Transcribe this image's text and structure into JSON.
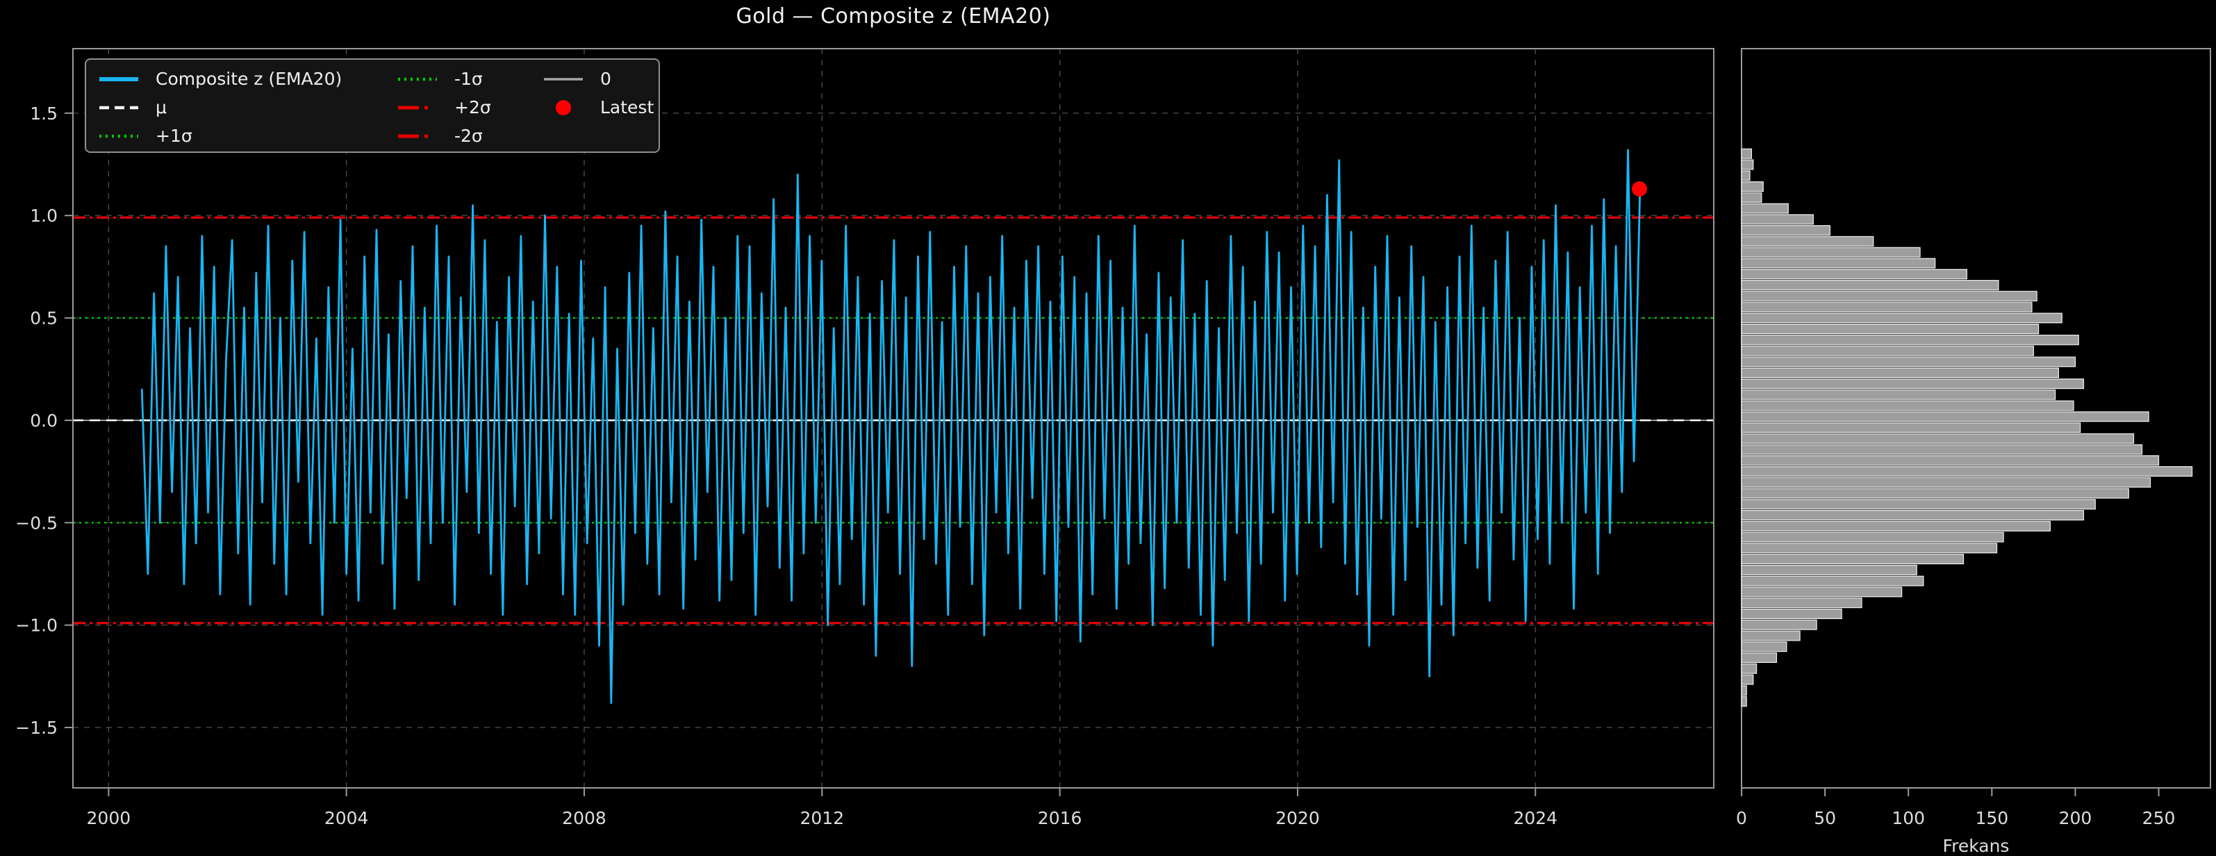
{
  "title": "Gold — Composite z (EMA20)",
  "colors": {
    "background": "#000000",
    "series_line": "#1ab5f2",
    "mu_line": "#f5f5f5",
    "sigma1_line": "#00cc00",
    "sigma2_line": "#e60000",
    "zero_line": "#a6a6a6",
    "latest_dot": "#ff0000",
    "hist_bar_fill": "#9e9e9e",
    "hist_bar_edge": "#f0f0f0",
    "grid": "#4a4a4a",
    "spine": "#9a9a9a",
    "tick_text": "#dedede"
  },
  "legend": {
    "items": [
      {
        "label": "Composite z (EMA20)",
        "style": "series"
      },
      {
        "label": "μ",
        "style": "mu"
      },
      {
        "label": "+1σ",
        "style": "sigma1"
      },
      {
        "label": "-1σ",
        "style": "sigma1"
      },
      {
        "label": "+2σ",
        "style": "sigma2"
      },
      {
        "label": "-2σ",
        "style": "sigma2"
      },
      {
        "label": "0",
        "style": "zero"
      },
      {
        "label": "Latest",
        "style": "dot"
      }
    ]
  },
  "chart_data": [
    {
      "type": "line",
      "title": "Gold — Composite z (EMA20)",
      "xlabel": "",
      "ylabel": "",
      "xlim": [
        1999.4,
        2027.0
      ],
      "ylim": [
        -1.795,
        1.815
      ],
      "grid": true,
      "legend_position": "upper left",
      "xticks": [
        2000,
        2004,
        2008,
        2012,
        2016,
        2020,
        2024
      ],
      "xtick_labels": [
        "2000",
        "2004",
        "2008",
        "2012",
        "2016",
        "2020",
        "2024"
      ],
      "yticks": [
        -1.5,
        -1.0,
        -0.5,
        0.0,
        0.5,
        1.0,
        1.5
      ],
      "ytick_labels": [
        "−1.5",
        "−1.0",
        "−0.5",
        "0.0",
        "0.5",
        "1.0",
        "1.5"
      ],
      "reference_lines": {
        "mu": 0.0,
        "plus_1sigma": 0.5,
        "minus_1sigma": -0.5,
        "plus_2sigma": 0.99,
        "minus_2sigma": -0.99,
        "zero": 0.0
      },
      "latest_point": {
        "x": 2025.75,
        "y": 1.13,
        "label": "Latest"
      },
      "series": [
        {
          "name": "Composite z (EMA20)",
          "x_start": 2000.56,
          "x_step": 0.1012,
          "values": [
            0.15,
            -0.75,
            0.62,
            -0.5,
            0.85,
            -0.35,
            0.7,
            -0.8,
            0.45,
            -0.6,
            0.9,
            -0.45,
            0.75,
            -0.85,
            0.3,
            0.88,
            -0.65,
            0.55,
            -0.9,
            0.72,
            -0.4,
            0.95,
            -0.7,
            0.5,
            -0.85,
            0.78,
            -0.3,
            0.92,
            -0.6,
            0.4,
            -0.95,
            0.65,
            -0.5,
            0.98,
            -0.75,
            0.35,
            -0.88,
            0.8,
            -0.45,
            0.93,
            -0.7,
            0.42,
            -0.92,
            0.68,
            -0.38,
            0.85,
            -0.78,
            0.55,
            -0.6,
            0.95,
            -0.5,
            0.8,
            -0.9,
            0.6,
            -0.35,
            1.05,
            -0.55,
            0.88,
            -0.75,
            0.48,
            -0.95,
            0.7,
            -0.42,
            0.9,
            -0.8,
            0.58,
            -0.65,
            1.0,
            -0.48,
            0.75,
            -0.85,
            0.52,
            -0.95,
            0.78,
            -0.6,
            0.4,
            -1.1,
            0.65,
            -1.38,
            0.35,
            -0.9,
            0.72,
            -0.55,
            0.95,
            -0.7,
            0.45,
            -0.85,
            1.02,
            -0.4,
            0.8,
            -0.92,
            0.58,
            -0.68,
            0.98,
            -0.35,
            0.75,
            -0.88,
            0.5,
            -0.78,
            0.9,
            -0.55,
            0.85,
            -0.95,
            0.62,
            -0.42,
            1.08,
            -0.72,
            0.55,
            -0.88,
            1.2,
            -0.65,
            0.9,
            -0.5,
            0.78,
            -1.0,
            0.45,
            -0.8,
            0.95,
            -0.58,
            0.7,
            -0.9,
            0.52,
            -1.15,
            0.68,
            -0.45,
            0.88,
            -0.75,
            0.6,
            -1.2,
            0.8,
            -0.58,
            0.92,
            -0.7,
            0.48,
            -0.95,
            0.75,
            -0.52,
            0.85,
            -0.8,
            0.62,
            -1.05,
            0.7,
            -0.45,
            0.9,
            -0.65,
            0.55,
            -0.92,
            0.78,
            -0.38,
            0.85,
            -0.75,
            0.58,
            -0.98,
            0.8,
            -0.52,
            0.7,
            -1.08,
            0.62,
            -0.85,
            0.9,
            -0.48,
            0.78,
            -0.92,
            0.55,
            -0.7,
            0.95,
            -0.6,
            0.42,
            -1.0,
            0.72,
            -0.82,
            0.6,
            -0.5,
            0.88,
            -0.72,
            0.52,
            -0.95,
            0.68,
            -1.1,
            0.45,
            -0.78,
            0.9,
            -0.55,
            0.75,
            -0.98,
            0.58,
            -0.7,
            0.92,
            -0.45,
            0.82,
            -0.88,
            0.65,
            -0.75,
            0.95,
            -0.5,
            0.85,
            -0.62,
            1.1,
            -0.4,
            1.27,
            -0.7,
            0.92,
            -0.85,
            0.55,
            -1.1,
            0.75,
            -0.48,
            0.9,
            -0.95,
            0.6,
            -0.78,
            0.85,
            -0.52,
            0.7,
            -1.25,
            0.48,
            -0.9,
            0.65,
            -1.05,
            0.8,
            -0.6,
            0.95,
            -0.72,
            0.55,
            -0.88,
            0.78,
            -0.45,
            0.92,
            -0.68,
            0.5,
            -0.98,
            0.75,
            -0.58,
            0.88,
            -0.7,
            1.05,
            -0.5,
            0.82,
            -0.92,
            0.65,
            -0.45,
            0.95,
            -0.75,
            1.08,
            -0.55,
            0.85,
            -0.35,
            1.32,
            -0.2,
            1.13
          ]
        }
      ]
    },
    {
      "type": "bar",
      "orientation": "horizontal",
      "xlabel": "Frekans",
      "xlim": [
        0,
        281
      ],
      "xticks": [
        0,
        50,
        100,
        150,
        200,
        250
      ],
      "xtick_labels": [
        "0",
        "50",
        "100",
        "150",
        "200",
        "250"
      ],
      "grid": false,
      "bin_z_top": 1.302,
      "bin_z_step": -0.0535,
      "frequencies": [
        6,
        7,
        5,
        13,
        12,
        28,
        43,
        53,
        79,
        107,
        116,
        135,
        154,
        177,
        174,
        192,
        178,
        202,
        175,
        200,
        190,
        205,
        188,
        199,
        244,
        203,
        235,
        240,
        250,
        270,
        245,
        232,
        212,
        205,
        185,
        157,
        153,
        133,
        105,
        109,
        96,
        72,
        60,
        45,
        35,
        27,
        21,
        9,
        7,
        3,
        3
      ]
    }
  ]
}
